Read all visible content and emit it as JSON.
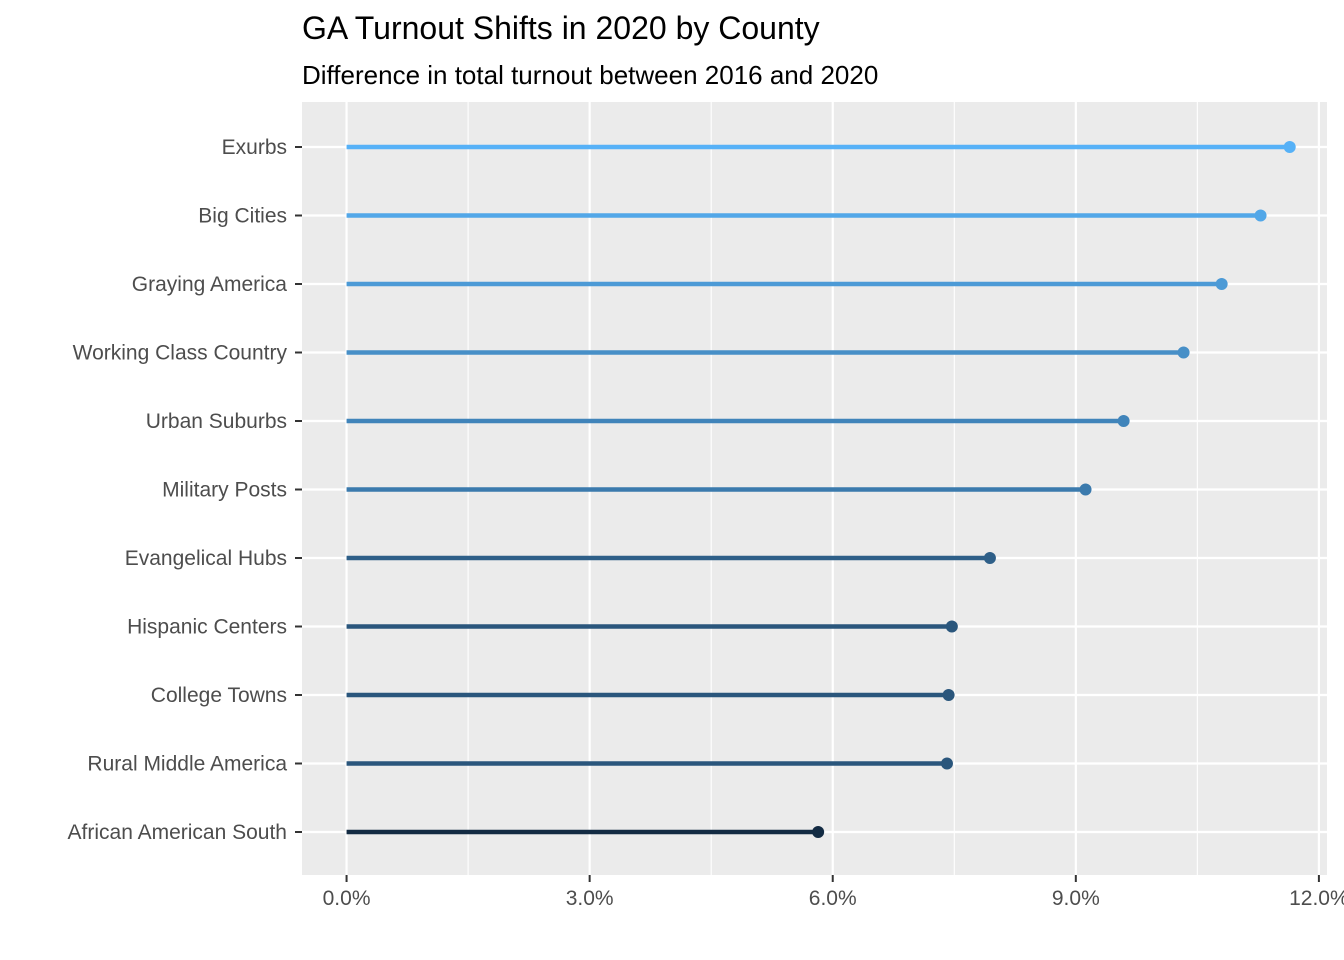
{
  "chart_data": {
    "type": "lollipop",
    "title": "GA Turnout Shifts in 2020 by County",
    "subtitle": "Difference in total turnout between 2016 and 2020",
    "xlabel": "",
    "ylabel": "",
    "xlim": [
      -0.0055,
      0.121
    ],
    "x_ticks": [
      0.0,
      0.03,
      0.06,
      0.09,
      0.12
    ],
    "x_tick_labels": [
      "0.0%",
      "3.0%",
      "6.0%",
      "9.0%",
      "12.0%"
    ],
    "grid": true,
    "legend": "none",
    "categories": [
      "Exurbs",
      "Big Cities",
      "Graying America",
      "Working Class Country",
      "Urban Suburbs",
      "Military Posts",
      "Evangelical Hubs",
      "Hispanic Centers",
      "College Towns",
      "Rural Middle America",
      "African American South"
    ],
    "values": [
      0.1164,
      0.1128,
      0.108,
      0.1033,
      0.0959,
      0.0912,
      0.0794,
      0.0747,
      0.0743,
      0.0741,
      0.0582
    ],
    "colors": [
      "#56b1f7",
      "#52a7e8",
      "#4c9ad6",
      "#478fc7",
      "#4084ba",
      "#3b7aad",
      "#2e5f88",
      "#2a567c",
      "#2a567c",
      "#2a567c",
      "#132b43"
    ]
  }
}
